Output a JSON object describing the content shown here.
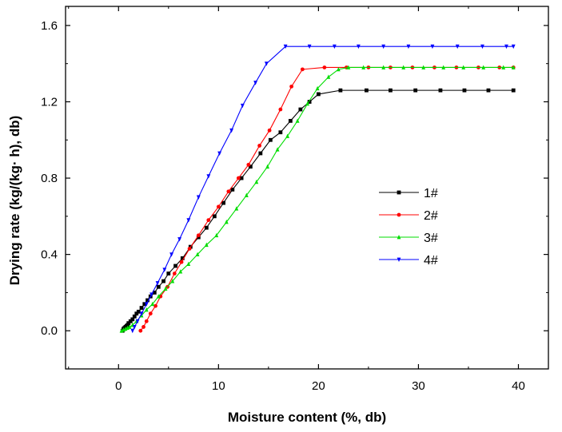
{
  "chart_data": {
    "type": "line",
    "title": "",
    "xlabel": "Moisture content (%, db)",
    "ylabel": "Drying rate (kg/(kg· h), db)",
    "xlim": [
      -5.3,
      43
    ],
    "ylim": [
      -0.2,
      1.7
    ],
    "xticks": [
      0,
      10,
      20,
      30,
      40
    ],
    "xtick_labels": [
      "0",
      "10",
      "20",
      "30",
      "40"
    ],
    "yticks": [
      0.0,
      0.4,
      0.8,
      1.2,
      1.6
    ],
    "ytick_labels": [
      "0.0",
      "0.4",
      "0.8",
      "1.2",
      "1.6"
    ],
    "grid": false,
    "legend_position": "center-right",
    "series": [
      {
        "name": "1#",
        "color": "#000000",
        "marker": "square",
        "points": [
          [
            0.4,
            0.0
          ],
          [
            0.5,
            0.01
          ],
          [
            0.6,
            0.015
          ],
          [
            0.7,
            0.02
          ],
          [
            0.8,
            0.025
          ],
          [
            0.9,
            0.03
          ],
          [
            1.0,
            0.04
          ],
          [
            1.2,
            0.05
          ],
          [
            1.4,
            0.06
          ],
          [
            1.6,
            0.075
          ],
          [
            1.8,
            0.09
          ],
          [
            2.0,
            0.1
          ],
          [
            2.3,
            0.12
          ],
          [
            2.6,
            0.14
          ],
          [
            2.9,
            0.16
          ],
          [
            3.2,
            0.18
          ],
          [
            3.6,
            0.2
          ],
          [
            4.0,
            0.23
          ],
          [
            4.5,
            0.26
          ],
          [
            5.0,
            0.3
          ],
          [
            5.7,
            0.34
          ],
          [
            6.4,
            0.38
          ],
          [
            7.2,
            0.44
          ],
          [
            8.0,
            0.49
          ],
          [
            8.8,
            0.54
          ],
          [
            9.6,
            0.6
          ],
          [
            10.5,
            0.67
          ],
          [
            11.4,
            0.74
          ],
          [
            12.3,
            0.8
          ],
          [
            13.2,
            0.86
          ],
          [
            14.2,
            0.93
          ],
          [
            15.2,
            1.0
          ],
          [
            16.2,
            1.04
          ],
          [
            17.2,
            1.1
          ],
          [
            18.2,
            1.16
          ],
          [
            19.1,
            1.2
          ],
          [
            20.0,
            1.24
          ],
          [
            22.2,
            1.26
          ],
          [
            24.8,
            1.26
          ],
          [
            27.2,
            1.26
          ],
          [
            29.7,
            1.26
          ],
          [
            32.2,
            1.26
          ],
          [
            34.6,
            1.26
          ],
          [
            37.0,
            1.26
          ],
          [
            39.5,
            1.26
          ]
        ]
      },
      {
        "name": "2#",
        "color": "#ff0000",
        "marker": "circle",
        "points": [
          [
            2.2,
            0.0
          ],
          [
            2.5,
            0.02
          ],
          [
            2.8,
            0.05
          ],
          [
            3.2,
            0.09
          ],
          [
            3.7,
            0.13
          ],
          [
            4.2,
            0.18
          ],
          [
            4.9,
            0.23
          ],
          [
            5.6,
            0.3
          ],
          [
            6.3,
            0.36
          ],
          [
            7.1,
            0.43
          ],
          [
            8.0,
            0.5
          ],
          [
            9.0,
            0.58
          ],
          [
            10.0,
            0.65
          ],
          [
            11.0,
            0.73
          ],
          [
            12.0,
            0.8
          ],
          [
            13.0,
            0.87
          ],
          [
            14.1,
            0.97
          ],
          [
            15.1,
            1.05
          ],
          [
            16.2,
            1.16
          ],
          [
            17.3,
            1.28
          ],
          [
            18.4,
            1.37
          ],
          [
            20.6,
            1.38
          ],
          [
            22.8,
            1.38
          ],
          [
            25.0,
            1.38
          ],
          [
            27.2,
            1.38
          ],
          [
            29.4,
            1.38
          ],
          [
            31.6,
            1.38
          ],
          [
            33.8,
            1.38
          ],
          [
            36.0,
            1.38
          ],
          [
            38.1,
            1.38
          ],
          [
            39.5,
            1.38
          ]
        ]
      },
      {
        "name": "3#",
        "color": "#00dd00",
        "marker": "triangle-up",
        "points": [
          [
            0.3,
            0.0
          ],
          [
            0.5,
            0.005
          ],
          [
            0.7,
            0.01
          ],
          [
            0.9,
            0.015
          ],
          [
            1.1,
            0.02
          ],
          [
            1.4,
            0.03
          ],
          [
            1.8,
            0.05
          ],
          [
            2.3,
            0.08
          ],
          [
            2.8,
            0.11
          ],
          [
            3.4,
            0.14
          ],
          [
            4.0,
            0.18
          ],
          [
            4.7,
            0.22
          ],
          [
            5.4,
            0.26
          ],
          [
            6.2,
            0.31
          ],
          [
            7.0,
            0.35
          ],
          [
            7.9,
            0.4
          ],
          [
            8.8,
            0.45
          ],
          [
            9.8,
            0.5
          ],
          [
            10.8,
            0.57
          ],
          [
            11.8,
            0.64
          ],
          [
            12.8,
            0.71
          ],
          [
            13.8,
            0.78
          ],
          [
            14.9,
            0.86
          ],
          [
            15.9,
            0.95
          ],
          [
            16.9,
            1.02
          ],
          [
            17.9,
            1.1
          ],
          [
            18.9,
            1.19
          ],
          [
            19.9,
            1.27
          ],
          [
            21.0,
            1.33
          ],
          [
            22.0,
            1.37
          ],
          [
            23.0,
            1.38
          ],
          [
            24.5,
            1.38
          ],
          [
            26.5,
            1.38
          ],
          [
            28.5,
            1.38
          ],
          [
            30.5,
            1.38
          ],
          [
            32.5,
            1.38
          ],
          [
            34.5,
            1.38
          ],
          [
            36.5,
            1.38
          ],
          [
            38.5,
            1.38
          ],
          [
            39.5,
            1.38
          ]
        ]
      },
      {
        "name": "4#",
        "color": "#0000ff",
        "marker": "triangle-down",
        "points": [
          [
            1.4,
            0.0
          ],
          [
            1.6,
            0.02
          ],
          [
            1.9,
            0.05
          ],
          [
            2.3,
            0.09
          ],
          [
            2.8,
            0.14
          ],
          [
            3.3,
            0.19
          ],
          [
            3.9,
            0.25
          ],
          [
            4.6,
            0.32
          ],
          [
            5.3,
            0.4
          ],
          [
            6.1,
            0.48
          ],
          [
            7.0,
            0.58
          ],
          [
            8.0,
            0.7
          ],
          [
            9.0,
            0.81
          ],
          [
            10.1,
            0.93
          ],
          [
            11.3,
            1.05
          ],
          [
            12.4,
            1.18
          ],
          [
            13.7,
            1.3
          ],
          [
            14.8,
            1.4
          ],
          [
            16.7,
            1.49
          ],
          [
            19.1,
            1.49
          ],
          [
            21.6,
            1.49
          ],
          [
            24.0,
            1.49
          ],
          [
            26.5,
            1.49
          ],
          [
            29.0,
            1.49
          ],
          [
            31.4,
            1.49
          ],
          [
            33.9,
            1.49
          ],
          [
            36.4,
            1.49
          ],
          [
            38.8,
            1.49
          ],
          [
            39.5,
            1.49
          ]
        ]
      }
    ]
  }
}
